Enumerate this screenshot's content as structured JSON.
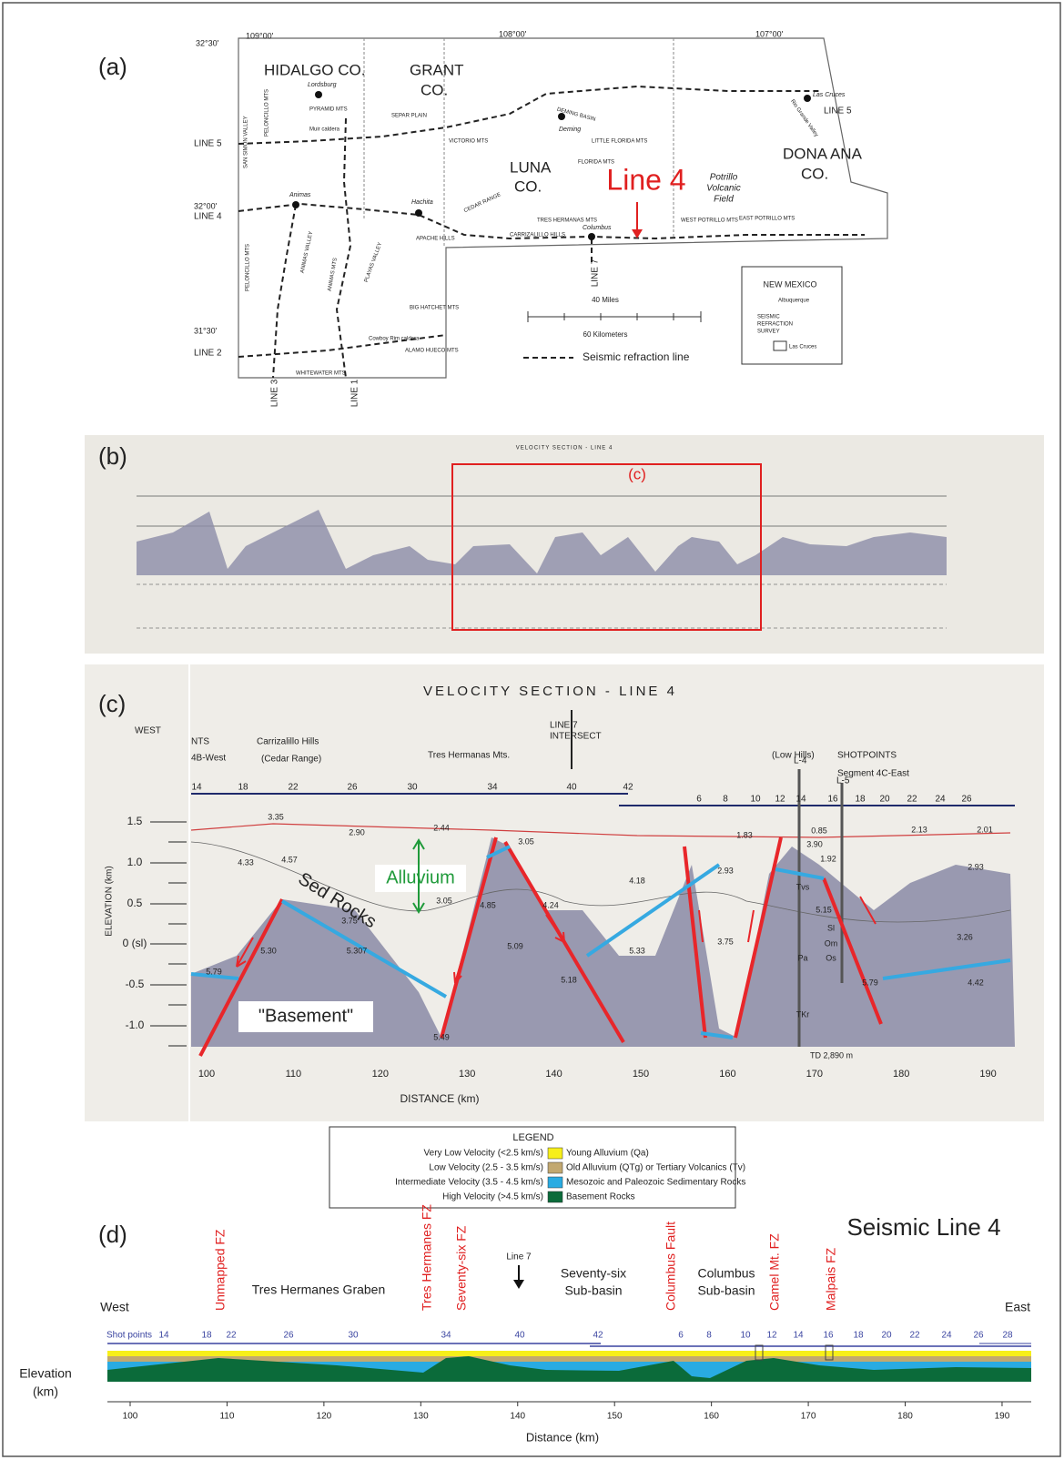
{
  "panel_a": {
    "label": "(a)",
    "latitudes": [
      "32°30'",
      "32°00'",
      "31°30'"
    ],
    "longitudes": [
      "109°00'",
      "108°00'",
      "107°00'"
    ],
    "lines": [
      "LINE 5",
      "LINE 4",
      "LINE 2",
      "LINE 3",
      "LINE 1",
      "LINE 7",
      "LINE 5"
    ],
    "counties": [
      [
        "HIDALGO CO."
      ],
      [
        "GRANT",
        "CO."
      ],
      [
        "LUNA",
        "CO."
      ],
      [
        "DONA ANA",
        "CO."
      ]
    ],
    "towns": [
      "Lordsburg",
      "Deming",
      "Las Cruces",
      "Columbus",
      "Animas",
      "Hachita"
    ],
    "features": [
      "SEPAR PLAIN",
      "DEMING BASIN",
      "CEDAR RANGE",
      "Rio Grande Valley",
      "SAN SIMON VALLEY",
      "PELONCILLO MTS",
      "ANIMAS VALLEY",
      "PELONCILLO MTS",
      "ANIMAS MTS",
      "PLAYAS VALLEY",
      "BIG HATCHET MTS",
      "ALAMO HUECO MTS",
      "TRES HERMANAS MTS",
      "WEST POTRILLO MTS",
      "EAST POTRILLO MTS",
      "FLORIDA MTS",
      "LITTLE FLORIDA MTS",
      "VICTORIO MTS",
      "PYRAMID MTS",
      "APACHE HILLS",
      "CARRIZALILLO HILLS",
      "Muir caldera",
      "Cowboy Rim caldera",
      "WHITEWATER MTS"
    ],
    "highlight": "Line 4",
    "volcanic_field": [
      "Potrillo",
      "Volcanic",
      "Field"
    ],
    "inset": {
      "title": "NEW MEXICO",
      "items": [
        "Albuquerque",
        "SEISMIC",
        "REFRACTION",
        "SURVEY",
        "Las Cruces"
      ]
    },
    "scale": [
      "40 Miles",
      "60 Kilometers"
    ],
    "legend": "Seismic refraction line"
  },
  "panel_b": {
    "label": "(b)",
    "title": "VELOCITY SECTION - LINE 4",
    "inset_label": "(c)"
  },
  "panel_c": {
    "label": "(c)",
    "title": "VELOCITY SECTION - LINE 4",
    "direction": "WEST",
    "places": [
      "NTS",
      "4B-West",
      "Carrizalillo Hills",
      "(Cedar Range)",
      "Tres Hermanas Mts.",
      "LINE 7",
      "INTERSECT",
      "(Low Hills)",
      "SHOTPOINTS",
      "Segment 4C-East",
      "L-4",
      "L-5"
    ],
    "shotpoints_west": [
      14,
      18,
      22,
      26,
      30,
      34,
      40,
      42
    ],
    "shotpoints_east": [
      6,
      8,
      10,
      12,
      14,
      16,
      18,
      20,
      22,
      24,
      26
    ],
    "y_axis_label": "ELEVATION (km)",
    "y_ticks": [
      "1.5",
      "1.0",
      "0.5",
      "0 (sl)",
      "-0.5",
      "-1.0"
    ],
    "x_axis_label": "DISTANCE (km)",
    "x_ticks": [
      100,
      110,
      120,
      130,
      140,
      150,
      160,
      170,
      180,
      190
    ],
    "annotations": [
      "Alluvium",
      "Sed Rocks",
      "\"Basement\""
    ],
    "velocities": [
      "3.35",
      "2.90",
      "2.44",
      "3.05",
      "4.57",
      "4.33",
      "3.05",
      "3.75",
      "4.85",
      "4.24",
      "5.09",
      "5.18",
      "5.33",
      "4.18",
      "2.93",
      "3.75",
      "1.83",
      "3.90",
      "1.92",
      "0.85",
      "2.13",
      "2.01",
      "2.93",
      "3.26",
      "4.42",
      "5.79",
      "5.15",
      "5.30",
      "5.307",
      "5.49",
      "5.79"
    ],
    "units": [
      "Tvs",
      "Sl",
      "Om",
      "Os",
      "Pa",
      "TKr"
    ],
    "well_depth": "TD 2,890 m"
  },
  "legend": {
    "title": "LEGEND",
    "rows": [
      {
        "velocity": "Very Low Velocity (<2.5 km/s)",
        "unit": "Young Alluvium (Qa)",
        "color": "#f7ef1a"
      },
      {
        "velocity": "Low Velocity (2.5 - 3.5 km/s)",
        "unit": "Old Alluvium (QTg) or Tertiary Volcanics (Tv)",
        "color": "#c2a870"
      },
      {
        "velocity": "Intermediate Velocity (3.5 - 4.5 km/s)",
        "unit": "Mesozoic and Paleozoic Sedimentary Rocks",
        "color": "#29abe2"
      },
      {
        "velocity": "High Velocity (>4.5 km/s)",
        "unit": "Basement Rocks",
        "color": "#0b6b3a"
      }
    ]
  },
  "panel_d": {
    "label": "(d)",
    "title": "Seismic Line 4",
    "west": "West",
    "east": "East",
    "basins": [
      [
        "Tres Hermanes Graben"
      ],
      [
        "Seventy-six",
        "Sub-basin"
      ],
      [
        "Columbus",
        "Sub-basin"
      ]
    ],
    "line7": "Line 7",
    "faults": [
      "Unmapped FZ",
      "Tres Hermanes FZ",
      "Seventy-six FZ",
      "Columbus Fault",
      "Camel Mt. FZ",
      "Malpais FZ"
    ],
    "shot_label": "Shot points",
    "shot_points": [
      14,
      18,
      22,
      26,
      30,
      34,
      40,
      42,
      6,
      8,
      10,
      12,
      14,
      16,
      18,
      20,
      22,
      24,
      26,
      28
    ],
    "y_axis_label": [
      "Elevation",
      "(km)"
    ],
    "x_ticks": [
      100,
      110,
      120,
      130,
      140,
      150,
      160,
      170,
      180,
      190
    ],
    "x_axis_label": "Distance (km)"
  }
}
